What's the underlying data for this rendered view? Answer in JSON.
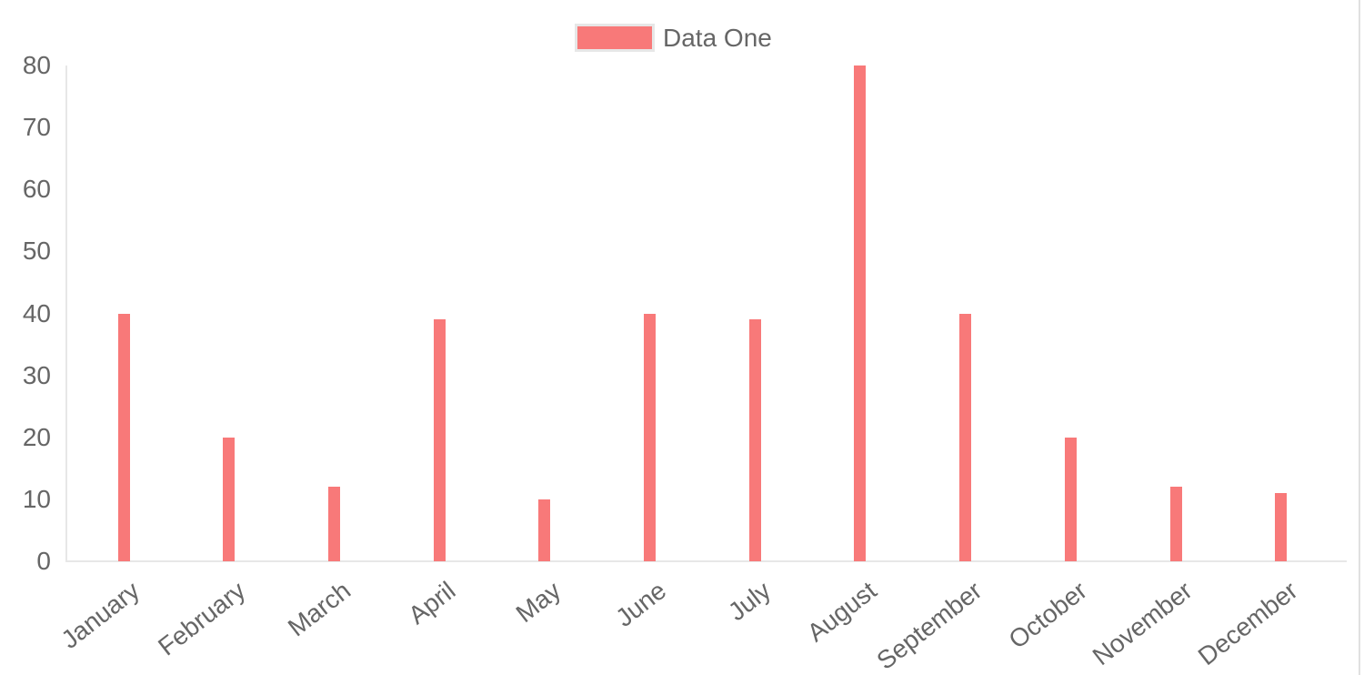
{
  "chart_data": {
    "type": "bar",
    "title": "",
    "categories": [
      "January",
      "February",
      "March",
      "April",
      "May",
      "June",
      "July",
      "August",
      "September",
      "October",
      "November",
      "December"
    ],
    "series": [
      {
        "name": "Data One",
        "values": [
          40,
          20,
          12,
          39,
          10,
          40,
          39,
          80,
          40,
          20,
          12,
          11
        ],
        "color": "#f87979"
      }
    ],
    "xlabel": "",
    "ylabel": "",
    "ylim": [
      0,
      80
    ],
    "yticks": [
      0,
      10,
      20,
      30,
      40,
      50,
      60,
      70,
      80
    ],
    "legend_position": "top",
    "grid": false,
    "x_label_rotation_deg": -38
  },
  "colors": {
    "bar": "#f87979",
    "legend_border": "#e7e7e7",
    "axis_line": "#e7e7e7",
    "tick_text": "#666666",
    "page_border": "#e0e0e0",
    "background": "#ffffff"
  }
}
